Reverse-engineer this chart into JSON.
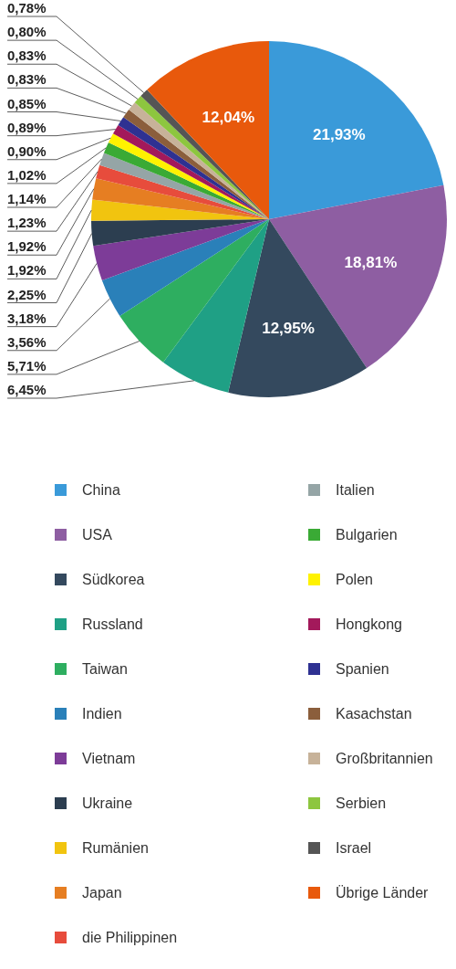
{
  "chart_data": {
    "type": "pie",
    "legend": "bottom",
    "value_labels": [
      "21,93%",
      "18,81%",
      "12,95%",
      "6,45%",
      "5,71%",
      "3,56%",
      "3,18%",
      "2,25%",
      "1,92%",
      "1,92%",
      "1,23%",
      "1,14%",
      "1,02%",
      "0,90%",
      "0,89%",
      "0,85%",
      "0,83%",
      "0,83%",
      "0,80%",
      "0,78%",
      "12,04%"
    ],
    "categories": [
      "China",
      "USA",
      "Südkorea",
      "Russland",
      "Taiwan",
      "Indien",
      "Vietnam",
      "Ukraine",
      "Rumänien",
      "Japan",
      "die Philippinen",
      "Italien",
      "Bulgarien",
      "Polen",
      "Hongkong",
      "Spanien",
      "Kasachstan",
      "Großbritannien",
      "Serbien",
      "Israel",
      "Übrige Länder"
    ],
    "values": [
      21.93,
      18.81,
      12.95,
      6.45,
      5.71,
      3.56,
      3.18,
      2.25,
      1.92,
      1.92,
      1.23,
      1.14,
      1.02,
      0.9,
      0.89,
      0.85,
      0.83,
      0.83,
      0.8,
      0.78,
      12.04
    ],
    "colors": [
      "#3a9ad9",
      "#8e5ea2",
      "#34495e",
      "#1fa085",
      "#2eae60",
      "#2a80b9",
      "#7d3c98",
      "#2c3e50",
      "#f1c40f",
      "#e67e22",
      "#e74c3c",
      "#95a5a6",
      "#3aaa35",
      "#fff200",
      "#a3195b",
      "#2e3192",
      "#8b5e3c",
      "#c7b299",
      "#8dc63f",
      "#555555",
      "#e8590c"
    ]
  }
}
